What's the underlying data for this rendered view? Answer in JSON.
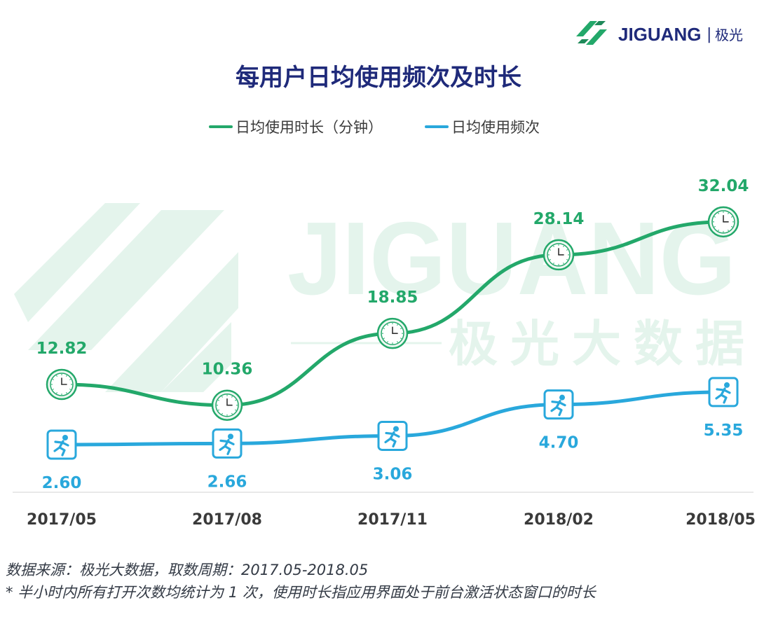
{
  "brand": {
    "name": "JIGUANG",
    "cn": "极光",
    "separator": "|",
    "watermark_en": "JIGUANG",
    "watermark_cn": "极光大数据"
  },
  "colors": {
    "green": "#23a86a",
    "blue": "#29a8dc",
    "title": "#1f2a7a",
    "axis_text": "#3a3a3a",
    "watermark": "#e4f4ec"
  },
  "chart_data": {
    "type": "line",
    "title": "每用户日均使用频次及时长",
    "categories": [
      "2017/05",
      "2017/08",
      "2017/11",
      "2018/02",
      "2018/05"
    ],
    "series": [
      {
        "name": "日均使用时长（分钟）",
        "values": [
          12.82,
          10.36,
          18.85,
          28.14,
          32.04
        ],
        "labels": [
          "12.82",
          "10.36",
          "18.85",
          "28.14",
          "32.04"
        ],
        "marker": "clock-icon",
        "color": "#23a86a"
      },
      {
        "name": "日均使用频次",
        "values": [
          2.6,
          2.66,
          3.06,
          4.7,
          5.35
        ],
        "labels": [
          "2.60",
          "2.66",
          "3.06",
          "4.70",
          "5.35"
        ],
        "marker": "runner-icon",
        "color": "#29a8dc"
      }
    ],
    "legend_position": "top-center",
    "grid": false
  },
  "footnotes": {
    "source": "数据来源：极光大数据，取数周期：2017.05-2018.05",
    "note": "* 半小时内所有打开次数均统计为 1 次，使用时长指应用界面处于前台激活状态窗口的时长"
  }
}
